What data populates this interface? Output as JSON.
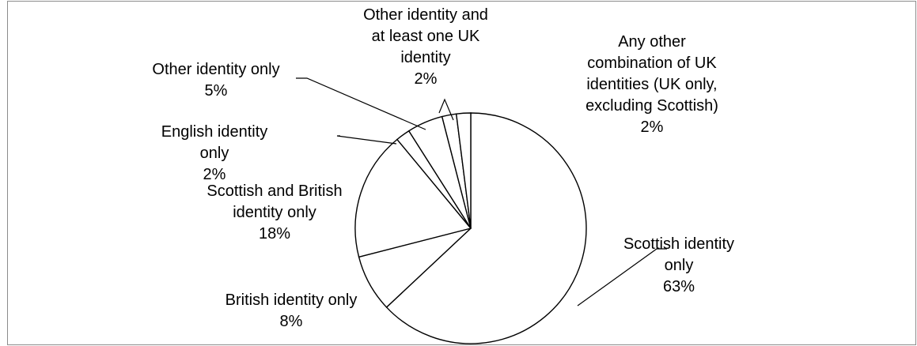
{
  "chart_data": {
    "type": "pie",
    "title": "",
    "slices": [
      {
        "label_lines": [
          "Scottish identity",
          "only"
        ],
        "value": 63,
        "value_label": "63%"
      },
      {
        "label_lines": [
          "British identity only"
        ],
        "value": 8,
        "value_label": "8%"
      },
      {
        "label_lines": [
          "Scottish and British",
          "identity only"
        ],
        "value": 18,
        "value_label": "18%"
      },
      {
        "label_lines": [
          "English identity",
          "only"
        ],
        "value": 2,
        "value_label": "2%"
      },
      {
        "label_lines": [
          "Other identity only"
        ],
        "value": 5,
        "value_label": "5%"
      },
      {
        "label_lines": [
          "Other identity and",
          "at least one UK",
          "identity"
        ],
        "value": 2,
        "value_label": "2%"
      },
      {
        "label_lines": [
          "Any other",
          "combination of UK",
          "identities (UK only,",
          "excluding Scottish)"
        ],
        "value": 2,
        "value_label": "2%"
      }
    ],
    "legend": "none",
    "colors": {
      "fill": "#ffffff",
      "stroke": "#000000",
      "frame": "#8c8c8c"
    }
  }
}
